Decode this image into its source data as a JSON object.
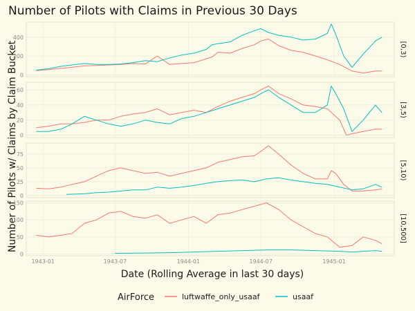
{
  "chart_data": {
    "type": "line",
    "title": "Number of Pilots with Claims in Previous 30 Days",
    "xlabel": "Date (Rolling Average in last 30 days)",
    "ylabel": "Number of Pilots w/ Claims by Claim Bucket",
    "x_ticks": [
      "1943-01",
      "1943-07",
      "1944-01",
      "1944-07",
      "1945-01"
    ],
    "x_tick_dates": [
      "1943-01-01",
      "1943-07-01",
      "1944-01-01",
      "1944-07-01",
      "1945-01-01"
    ],
    "xlim": [
      "1942-11-20",
      "1945-06-01"
    ],
    "legend": {
      "title": "AirForce",
      "position": "bottom"
    },
    "colors": {
      "luftwaffe_only_usaaf": "#f8766d",
      "usaaf": "#00bfc4"
    },
    "grid": true,
    "facets": [
      {
        "label": "[0,3)",
        "ylim": [
          -20,
          560
        ],
        "y_ticks": [
          0,
          200,
          400
        ],
        "series": [
          {
            "name": "luftwaffe_only_usaaf",
            "x": [
              "1942-12-15",
              "1943-01-15",
              "1943-02-15",
              "1943-03-15",
              "1943-04-15",
              "1943-05-15",
              "1943-06-15",
              "1943-07-15",
              "1943-08-15",
              "1943-09-15",
              "1943-10-15",
              "1943-11-15",
              "1943-12-15",
              "1944-01-15",
              "1944-02-15",
              "1944-03-01",
              "1944-03-15",
              "1944-04-15",
              "1944-05-15",
              "1944-06-15",
              "1944-07-01",
              "1944-07-20",
              "1944-08-15",
              "1944-09-15",
              "1944-10-15",
              "1944-11-15",
              "1944-12-15",
              "1945-01-15",
              "1945-02-15",
              "1945-03-15",
              "1945-04-15",
              "1945-05-01"
            ],
            "y": [
              45,
              55,
              70,
              80,
              95,
              100,
              105,
              110,
              120,
              115,
              200,
              110,
              120,
              130,
              170,
              190,
              240,
              230,
              280,
              320,
              360,
              380,
              310,
              260,
              240,
              200,
              160,
              110,
              40,
              20,
              40,
              40
            ]
          },
          {
            "name": "usaaf",
            "x": [
              "1942-12-15",
              "1943-01-15",
              "1943-02-15",
              "1943-03-15",
              "1943-04-15",
              "1943-05-15",
              "1943-06-15",
              "1943-07-15",
              "1943-08-15",
              "1943-09-15",
              "1943-10-15",
              "1943-11-15",
              "1943-12-15",
              "1944-01-15",
              "1944-02-15",
              "1944-03-01",
              "1944-03-15",
              "1944-04-15",
              "1944-05-15",
              "1944-06-15",
              "1944-07-01",
              "1944-07-20",
              "1944-08-15",
              "1944-09-15",
              "1944-10-15",
              "1944-11-15",
              "1944-12-15",
              "1944-12-25",
              "1945-01-05",
              "1945-01-25",
              "1945-02-15",
              "1945-03-15",
              "1945-04-15",
              "1945-05-01"
            ],
            "y": [
              50,
              65,
              90,
              105,
              120,
              110,
              110,
              115,
              130,
              150,
              140,
              180,
              210,
              230,
              270,
              320,
              330,
              350,
              420,
              470,
              490,
              450,
              420,
              400,
              370,
              380,
              440,
              540,
              430,
              200,
              80,
              220,
              360,
              400
            ]
          }
        ]
      },
      {
        "label": "[3,5)",
        "ylim": [
          -3,
          70
        ],
        "y_ticks": [
          0,
          20,
          40,
          60
        ],
        "series": [
          {
            "name": "luftwaffe_only_usaaf",
            "x": [
              "1942-12-15",
              "1943-01-15",
              "1943-02-15",
              "1943-03-15",
              "1943-04-15",
              "1943-05-15",
              "1943-06-15",
              "1943-07-15",
              "1943-08-15",
              "1943-09-15",
              "1943-10-15",
              "1943-11-15",
              "1943-12-15",
              "1944-01-15",
              "1944-02-15",
              "1944-03-15",
              "1944-04-15",
              "1944-05-15",
              "1944-06-15",
              "1944-07-01",
              "1944-07-20",
              "1944-08-15",
              "1944-09-15",
              "1944-10-15",
              "1944-11-15",
              "1944-12-15",
              "1945-01-15",
              "1945-02-01",
              "1945-02-15",
              "1945-03-15",
              "1945-04-15",
              "1945-05-01"
            ],
            "y": [
              10,
              12,
              15,
              15,
              17,
              20,
              20,
              25,
              28,
              30,
              35,
              27,
              30,
              33,
              30,
              38,
              45,
              50,
              55,
              60,
              65,
              55,
              48,
              40,
              38,
              35,
              20,
              0,
              2,
              5,
              8,
              8
            ]
          },
          {
            "name": "usaaf",
            "x": [
              "1942-12-15",
              "1943-01-15",
              "1943-02-15",
              "1943-03-15",
              "1943-04-15",
              "1943-05-15",
              "1943-06-15",
              "1943-07-15",
              "1943-08-15",
              "1943-09-15",
              "1943-10-15",
              "1943-11-15",
              "1943-12-15",
              "1944-01-15",
              "1944-02-15",
              "1944-03-15",
              "1944-04-15",
              "1944-05-15",
              "1944-06-15",
              "1944-07-01",
              "1944-07-20",
              "1944-08-15",
              "1944-09-15",
              "1944-10-15",
              "1944-11-15",
              "1944-12-15",
              "1944-12-25",
              "1945-01-05",
              "1945-01-25",
              "1945-02-15",
              "1945-03-15",
              "1945-04-15",
              "1945-05-01"
            ],
            "y": [
              5,
              5,
              8,
              15,
              25,
              20,
              15,
              12,
              15,
              20,
              17,
              15,
              22,
              25,
              30,
              35,
              40,
              45,
              50,
              55,
              60,
              50,
              40,
              30,
              30,
              40,
              65,
              55,
              35,
              5,
              20,
              40,
              30
            ]
          }
        ]
      },
      {
        "label": "[5,10)",
        "ylim": [
          -4,
          95
        ],
        "y_ticks": [
          0,
          25,
          50,
          75
        ],
        "series": [
          {
            "name": "luftwaffe_only_usaaf",
            "x": [
              "1942-12-15",
              "1943-01-15",
              "1943-02-15",
              "1943-03-15",
              "1943-04-15",
              "1943-05-15",
              "1943-06-15",
              "1943-07-15",
              "1943-08-15",
              "1943-09-15",
              "1943-10-15",
              "1943-11-15",
              "1943-12-15",
              "1944-01-15",
              "1944-02-15",
              "1944-03-15",
              "1944-04-15",
              "1944-05-15",
              "1944-06-15",
              "1944-07-01",
              "1944-07-20",
              "1944-08-15",
              "1944-09-15",
              "1944-10-15",
              "1944-11-15",
              "1944-12-15",
              "1944-12-25",
              "1945-01-05",
              "1945-01-25",
              "1945-02-15",
              "1945-03-15",
              "1945-04-15",
              "1945-05-01"
            ],
            "y": [
              13,
              12,
              15,
              20,
              25,
              35,
              45,
              50,
              45,
              40,
              42,
              35,
              40,
              45,
              50,
              60,
              65,
              70,
              72,
              80,
              90,
              75,
              55,
              40,
              30,
              30,
              45,
              40,
              20,
              8,
              8,
              10,
              12
            ]
          },
          {
            "name": "usaaf",
            "x": [
              "1943-03-01",
              "1943-04-15",
              "1943-05-15",
              "1943-06-15",
              "1943-07-15",
              "1943-08-15",
              "1943-09-15",
              "1943-10-15",
              "1943-11-15",
              "1943-12-15",
              "1944-01-15",
              "1944-02-15",
              "1944-03-15",
              "1944-04-15",
              "1944-05-15",
              "1944-06-15",
              "1944-07-15",
              "1944-08-15",
              "1944-09-15",
              "1944-10-15",
              "1944-11-15",
              "1944-12-15",
              "1945-01-15",
              "1945-02-15",
              "1945-03-15",
              "1945-04-15",
              "1945-05-01"
            ],
            "y": [
              2,
              3,
              5,
              6,
              8,
              10,
              10,
              15,
              13,
              15,
              18,
              22,
              25,
              27,
              28,
              25,
              30,
              32,
              28,
              25,
              22,
              20,
              15,
              10,
              12,
              20,
              15
            ]
          }
        ]
      },
      {
        "label": "[10,500]",
        "ylim": [
          -5,
          155
        ],
        "y_ticks": [
          0,
          50,
          100,
          150
        ],
        "series": [
          {
            "name": "luftwaffe_only_usaaf",
            "x": [
              "1942-12-15",
              "1943-01-15",
              "1943-02-15",
              "1943-03-15",
              "1943-04-15",
              "1943-05-15",
              "1943-06-15",
              "1943-07-15",
              "1943-08-15",
              "1943-09-15",
              "1943-10-15",
              "1943-11-15",
              "1943-12-15",
              "1944-01-15",
              "1944-02-15",
              "1944-03-15",
              "1944-04-15",
              "1944-05-15",
              "1944-06-15",
              "1944-07-15",
              "1944-08-15",
              "1944-09-15",
              "1944-10-15",
              "1944-11-15",
              "1944-12-15",
              "1945-01-15",
              "1945-02-15",
              "1945-03-15",
              "1945-04-15",
              "1945-05-01"
            ],
            "y": [
              55,
              50,
              55,
              60,
              90,
              100,
              120,
              125,
              110,
              105,
              115,
              90,
              100,
              110,
              90,
              115,
              120,
              130,
              140,
              150,
              130,
              100,
              80,
              60,
              50,
              20,
              25,
              50,
              40,
              30
            ]
          },
          {
            "name": "usaaf",
            "x": [
              "1943-07-01",
              "1943-09-15",
              "1943-11-15",
              "1944-01-15",
              "1944-03-15",
              "1944-05-15",
              "1944-07-15",
              "1944-09-15",
              "1944-11-15",
              "1945-01-15",
              "1945-02-15",
              "1945-03-15",
              "1945-04-15",
              "1945-05-01"
            ],
            "y": [
              2,
              3,
              4,
              6,
              8,
              10,
              12,
              12,
              10,
              8,
              6,
              8,
              10,
              8
            ]
          }
        ]
      }
    ]
  }
}
